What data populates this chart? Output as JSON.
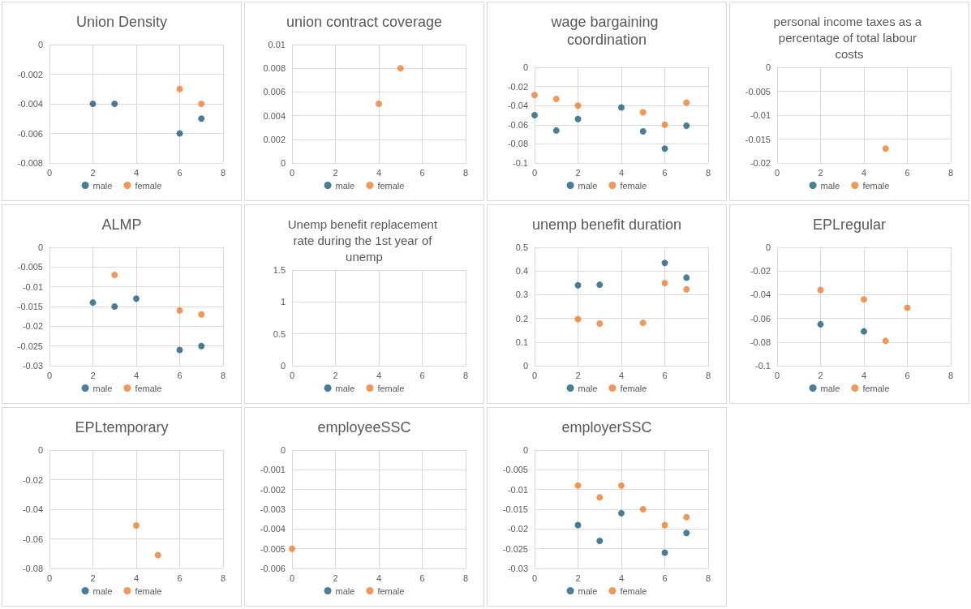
{
  "chart_data": [
    {
      "type": "scatter",
      "title": "Union Density",
      "xlim": [
        0,
        8
      ],
      "xticks": [
        0,
        2,
        4,
        6,
        8
      ],
      "ylim": [
        -0.008,
        0
      ],
      "yticks": [
        -0.008,
        -0.006,
        -0.004,
        -0.002,
        0
      ],
      "grid": true,
      "legend": "bottom",
      "marker": "circle",
      "series": [
        {
          "name": "male",
          "color": "#1b5e7e",
          "x": [
            2,
            3,
            6,
            7
          ],
          "values": [
            -0.004,
            -0.004,
            -0.006,
            -0.005
          ]
        },
        {
          "name": "female",
          "color": "#ed7d31",
          "x": [
            6,
            7
          ],
          "values": [
            -0.003,
            -0.004
          ]
        }
      ]
    },
    {
      "type": "scatter",
      "title": "union contract coverage",
      "xlim": [
        0,
        8
      ],
      "xticks": [
        0,
        2,
        4,
        6,
        8
      ],
      "ylim": [
        0,
        0.01
      ],
      "yticks": [
        0,
        0.002,
        0.004,
        0.006,
        0.008,
        0.01
      ],
      "grid": true,
      "legend": "bottom",
      "marker": "circle",
      "series": [
        {
          "name": "male",
          "color": "#1b5e7e"
        },
        {
          "name": "female",
          "color": "#ed7d31",
          "x": [
            4,
            5
          ],
          "values": [
            0.005,
            0.008
          ]
        }
      ]
    },
    {
      "type": "scatter",
      "title": "wage bargaining coordination",
      "xlim": [
        0,
        8
      ],
      "xticks": [
        0,
        2,
        4,
        6,
        8
      ],
      "ylim": [
        -0.1,
        0
      ],
      "yticks": [
        -0.1,
        -0.08,
        -0.06,
        -0.04,
        -0.02,
        0
      ],
      "grid": true,
      "legend": "bottom",
      "marker": "circle",
      "series": [
        {
          "name": "male",
          "color": "#1b5e7e",
          "x": [
            0,
            1,
            2,
            4,
            5,
            6,
            7
          ],
          "values": [
            -0.05,
            -0.066,
            -0.054,
            -0.042,
            -0.067,
            -0.085,
            -0.061
          ]
        },
        {
          "name": "female",
          "color": "#ed7d31",
          "x": [
            0,
            1,
            2,
            5,
            6,
            7
          ],
          "values": [
            -0.029,
            -0.033,
            -0.04,
            -0.047,
            -0.06,
            -0.037
          ]
        }
      ]
    },
    {
      "type": "scatter",
      "title": "personal income taxes as a percentage of total labour costs",
      "xlim": [
        0,
        8
      ],
      "xticks": [
        0,
        2,
        4,
        6,
        8
      ],
      "ylim": [
        -0.02,
        0
      ],
      "yticks": [
        -0.02,
        -0.015,
        -0.01,
        -0.005,
        0
      ],
      "grid": true,
      "legend": "bottom",
      "marker": "circle",
      "series": [
        {
          "name": "male",
          "color": "#1b5e7e"
        },
        {
          "name": "female",
          "color": "#ed7d31",
          "x": [
            5
          ],
          "values": [
            -0.017
          ]
        }
      ]
    },
    {
      "type": "scatter",
      "title": "ALMP",
      "xlim": [
        0,
        8
      ],
      "xticks": [
        0,
        2,
        4,
        6,
        8
      ],
      "ylim": [
        -0.03,
        0
      ],
      "yticks": [
        -0.03,
        -0.025,
        -0.02,
        -0.015,
        -0.01,
        -0.005,
        0
      ],
      "grid": true,
      "legend": "bottom",
      "marker": "circle",
      "series": [
        {
          "name": "male",
          "color": "#1b5e7e",
          "x": [
            2,
            3,
            4,
            6,
            7
          ],
          "values": [
            -0.014,
            -0.015,
            -0.013,
            -0.026,
            -0.025
          ]
        },
        {
          "name": "female",
          "color": "#ed7d31",
          "x": [
            3,
            6,
            7
          ],
          "values": [
            -0.007,
            -0.016,
            -0.017
          ]
        }
      ]
    },
    {
      "type": "scatter",
      "title": "Unemp benefit replacement rate during the 1st year of unemp",
      "categories": [
        "0",
        "2",
        "4",
        "6",
        "8"
      ],
      "ylim": [
        0,
        1.5
      ],
      "yticks": [
        0,
        0.5,
        1,
        1.5
      ],
      "grid": true,
      "legend": "bottom",
      "marker": "circle",
      "series": [
        {
          "name": "male",
          "color": "#1b5e7e",
          "values": [
            null,
            null,
            null,
            null,
            null
          ]
        },
        {
          "name": "female",
          "color": "#ed7d31",
          "values": [
            null,
            null,
            null,
            null,
            null
          ]
        }
      ]
    },
    {
      "type": "scatter",
      "title": "unemp benefit duration",
      "xlim": [
        0,
        8
      ],
      "xticks": [
        0,
        2,
        4,
        6,
        8
      ],
      "ylim": [
        0,
        0.5
      ],
      "yticks": [
        0,
        0.1,
        0.2,
        0.3,
        0.4,
        0.5
      ],
      "grid": true,
      "legend": "bottom",
      "marker": "circle",
      "series": [
        {
          "name": "male",
          "color": "#1b5e7e",
          "x": [
            2,
            3,
            6,
            7
          ],
          "values": [
            0.34,
            0.342,
            0.434,
            0.372
          ]
        },
        {
          "name": "female",
          "color": "#ed7d31",
          "x": [
            2,
            3,
            5,
            6,
            7
          ],
          "values": [
            0.197,
            0.178,
            0.181,
            0.349,
            0.323
          ]
        }
      ]
    },
    {
      "type": "scatter",
      "title": "EPLregular",
      "xlim": [
        0,
        8
      ],
      "xticks": [
        0,
        2,
        4,
        6,
        8
      ],
      "ylim": [
        -0.1,
        0
      ],
      "yticks": [
        -0.1,
        -0.08,
        -0.06,
        -0.04,
        -0.02,
        0
      ],
      "grid": true,
      "legend": "bottom",
      "marker": "circle",
      "series": [
        {
          "name": "male",
          "color": "#1b5e7e",
          "x": [
            2,
            4
          ],
          "values": [
            -0.065,
            -0.071
          ]
        },
        {
          "name": "female",
          "color": "#ed7d31",
          "x": [
            2,
            4,
            5,
            6
          ],
          "values": [
            -0.036,
            -0.044,
            -0.079,
            -0.051
          ]
        }
      ]
    },
    {
      "type": "scatter",
      "title": "EPLtemporary",
      "xlim": [
        0,
        8
      ],
      "xticks": [
        0,
        2,
        4,
        6,
        8
      ],
      "ylim": [
        -0.08,
        0
      ],
      "yticks": [
        -0.08,
        -0.06,
        -0.04,
        -0.02,
        0
      ],
      "grid": true,
      "legend": "bottom",
      "marker": "circle",
      "series": [
        {
          "name": "male",
          "color": "#1b5e7e"
        },
        {
          "name": "female",
          "color": "#ed7d31",
          "x": [
            4,
            5
          ],
          "values": [
            -0.051,
            -0.071
          ]
        }
      ]
    },
    {
      "type": "scatter",
      "title": "employeeSSC",
      "xlim": [
        0,
        8
      ],
      "xticks": [
        0,
        2,
        4,
        6,
        8
      ],
      "ylim": [
        -0.006,
        0
      ],
      "yticks": [
        -0.006,
        -0.005,
        -0.004,
        -0.003,
        -0.002,
        -0.001,
        0
      ],
      "grid": true,
      "legend": "bottom",
      "marker": "circle",
      "series": [
        {
          "name": "male",
          "color": "#1b5e7e"
        },
        {
          "name": "female",
          "color": "#ed7d31",
          "x": [
            0
          ],
          "values": [
            -0.005
          ]
        }
      ]
    },
    {
      "type": "scatter",
      "title": "employerSSC",
      "xlim": [
        0,
        8
      ],
      "xticks": [
        0,
        2,
        4,
        6,
        8
      ],
      "ylim": [
        -0.03,
        0
      ],
      "yticks": [
        -0.03,
        -0.025,
        -0.02,
        -0.015,
        -0.01,
        -0.005,
        0
      ],
      "grid": true,
      "legend": "bottom",
      "marker": "circle",
      "series": [
        {
          "name": "male",
          "color": "#1b5e7e",
          "x": [
            2,
            3,
            4,
            6,
            7
          ],
          "values": [
            -0.019,
            -0.023,
            -0.016,
            -0.026,
            -0.021
          ]
        },
        {
          "name": "female",
          "color": "#ed7d31",
          "x": [
            2,
            3,
            4,
            5,
            6,
            7
          ],
          "values": [
            -0.009,
            -0.012,
            -0.009,
            -0.015,
            -0.019,
            -0.017
          ]
        }
      ]
    }
  ]
}
